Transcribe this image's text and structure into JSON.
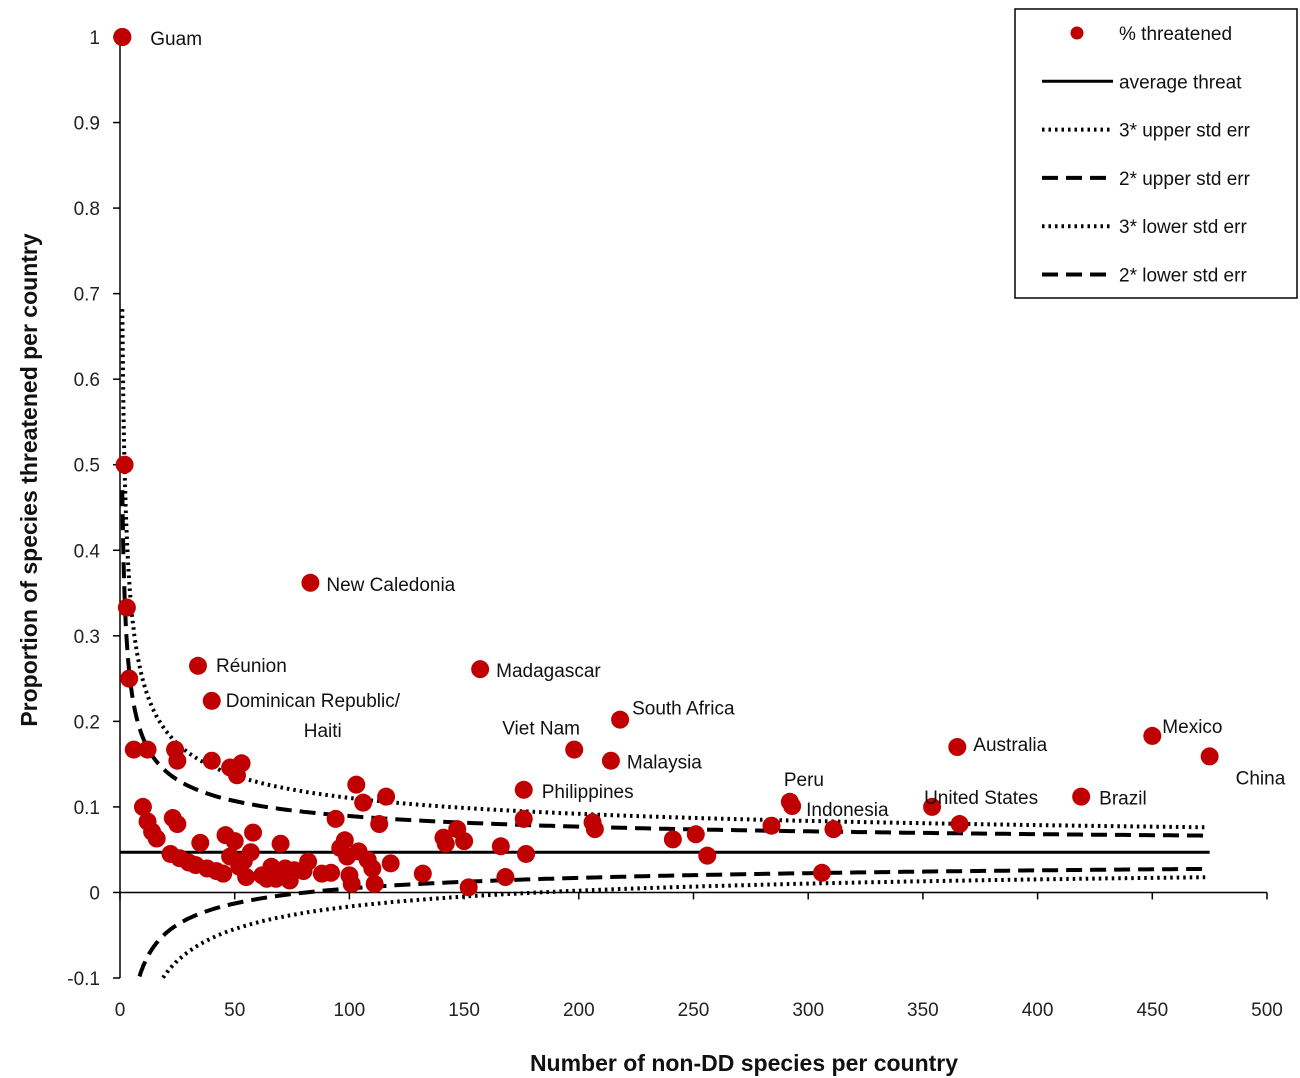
{
  "chart_data": {
    "type": "scatter",
    "xlabel": "Number of non-DD species per country",
    "ylabel": "Proportion of species threatened per country",
    "xlim": [
      0,
      500
    ],
    "ylim": [
      -0.1,
      1
    ],
    "x_ticks": [
      0,
      50,
      100,
      150,
      200,
      250,
      300,
      350,
      400,
      450,
      500
    ],
    "y_ticks": [
      -0.1,
      0,
      0.1,
      0.2,
      0.3,
      0.4,
      0.5,
      0.6,
      0.7,
      0.8,
      0.9,
      1
    ],
    "grid": false,
    "legend_position": "top-right",
    "colors": {
      "points": "#c00000",
      "lines": "#000000"
    },
    "average_threat": 0.047,
    "series": [
      {
        "name": "% threatened",
        "kind": "points"
      },
      {
        "name": "average threat",
        "kind": "line-solid"
      },
      {
        "name": "3* upper std err",
        "kind": "line-dotted"
      },
      {
        "name": "2* upper std err",
        "kind": "line-dashed"
      },
      {
        "name": "3* lower std err",
        "kind": "line-dotted"
      },
      {
        "name": "2* lower std err",
        "kind": "line-dashed"
      }
    ],
    "labeled_points": [
      {
        "label": "Guam",
        "x": 1,
        "y": 1.0
      },
      {
        "label": "New Caledonia",
        "x": 83,
        "y": 0.362
      },
      {
        "label": "Réunion",
        "x": 34,
        "y": 0.265
      },
      {
        "label": "Dominican Republic/",
        "label2": "Haiti",
        "x": 40,
        "y": 0.224
      },
      {
        "label": "Madagascar",
        "x": 157,
        "y": 0.261
      },
      {
        "label": "South Africa",
        "x": 218,
        "y": 0.202
      },
      {
        "label": "Viet Nam",
        "x": 198,
        "y": 0.167
      },
      {
        "label": "Malaysia",
        "x": 214,
        "y": 0.154
      },
      {
        "label": "Philippines",
        "x": 176,
        "y": 0.12
      },
      {
        "label": "Peru",
        "x": 292,
        "y": 0.106
      },
      {
        "label": "Indonesia",
        "x": 293,
        "y": 0.101
      },
      {
        "label": "United States",
        "x": 354,
        "y": 0.1
      },
      {
        "label": "Australia",
        "x": 365,
        "y": 0.17
      },
      {
        "label": "Brazil",
        "x": 419,
        "y": 0.112
      },
      {
        "label": "Mexico",
        "x": 450,
        "y": 0.183
      },
      {
        "label": "China",
        "x": 475,
        "y": 0.159
      }
    ],
    "points": [
      [
        1,
        1.0
      ],
      [
        2,
        0.5
      ],
      [
        3,
        0.333
      ],
      [
        4,
        0.25
      ],
      [
        6,
        0.167
      ],
      [
        12,
        0.167
      ],
      [
        24,
        0.167
      ],
      [
        25,
        0.154
      ],
      [
        40,
        0.154
      ],
      [
        48,
        0.146
      ],
      [
        51,
        0.137
      ],
      [
        53,
        0.151
      ],
      [
        10,
        0.1
      ],
      [
        12,
        0.083
      ],
      [
        14,
        0.071
      ],
      [
        16,
        0.063
      ],
      [
        23,
        0.087
      ],
      [
        25,
        0.08
      ],
      [
        22,
        0.045
      ],
      [
        26,
        0.04
      ],
      [
        30,
        0.035
      ],
      [
        33,
        0.032
      ],
      [
        35,
        0.058
      ],
      [
        38,
        0.028
      ],
      [
        42,
        0.025
      ],
      [
        45,
        0.022
      ],
      [
        46,
        0.067
      ],
      [
        48,
        0.042
      ],
      [
        50,
        0.06
      ],
      [
        52,
        0.03
      ],
      [
        54,
        0.037
      ],
      [
        55,
        0.018
      ],
      [
        57,
        0.047
      ],
      [
        58,
        0.07
      ],
      [
        62,
        0.02
      ],
      [
        64,
        0.016
      ],
      [
        66,
        0.03
      ],
      [
        68,
        0.016
      ],
      [
        70,
        0.057
      ],
      [
        72,
        0.028
      ],
      [
        74,
        0.014
      ],
      [
        76,
        0.026
      ],
      [
        80,
        0.025
      ],
      [
        82,
        0.036
      ],
      [
        88,
        0.022
      ],
      [
        92,
        0.023
      ],
      [
        94,
        0.086
      ],
      [
        96,
        0.052
      ],
      [
        98,
        0.061
      ],
      [
        99,
        0.042
      ],
      [
        100,
        0.02
      ],
      [
        101,
        0.01
      ],
      [
        103,
        0.126
      ],
      [
        104,
        0.048
      ],
      [
        106,
        0.105
      ],
      [
        108,
        0.038
      ],
      [
        110,
        0.028
      ],
      [
        111,
        0.01
      ],
      [
        113,
        0.08
      ],
      [
        116,
        0.112
      ],
      [
        118,
        0.034
      ],
      [
        132,
        0.022
      ],
      [
        141,
        0.064
      ],
      [
        142,
        0.057
      ],
      [
        147,
        0.074
      ],
      [
        150,
        0.06
      ],
      [
        152,
        0.006
      ],
      [
        166,
        0.054
      ],
      [
        168,
        0.018
      ],
      [
        176,
        0.086
      ],
      [
        177,
        0.045
      ],
      [
        206,
        0.082
      ],
      [
        207,
        0.074
      ],
      [
        241,
        0.062
      ],
      [
        251,
        0.068
      ],
      [
        256,
        0.043
      ],
      [
        284,
        0.078
      ],
      [
        306,
        0.023
      ],
      [
        311,
        0.074
      ],
      [
        366,
        0.08
      ]
    ]
  }
}
